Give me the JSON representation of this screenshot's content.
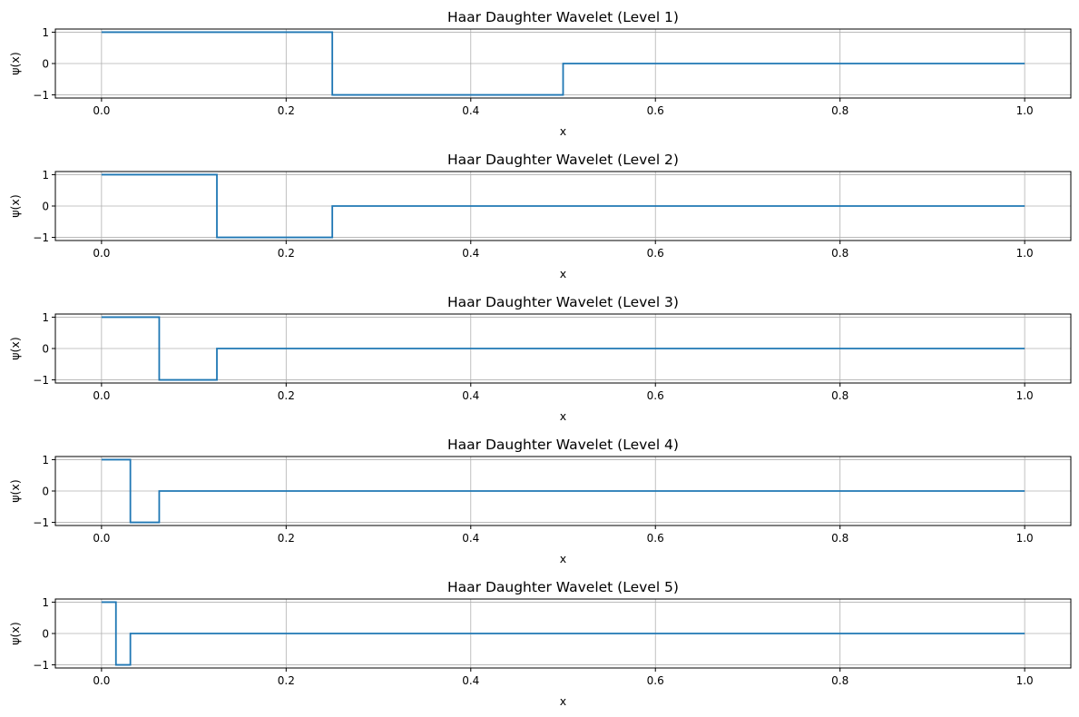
{
  "chart_data": [
    {
      "type": "line",
      "title": "Haar Daughter Wavelet (Level 1)",
      "xlabel": "x",
      "ylabel": "ψ(x)",
      "xlim": [
        -0.05,
        1.05
      ],
      "ylim": [
        -1.1,
        1.1
      ],
      "xticks": [
        0.0,
        0.2,
        0.4,
        0.6,
        0.8,
        1.0
      ],
      "xtick_labels": [
        "0.0",
        "0.2",
        "0.4",
        "0.6",
        "0.8",
        "1.0"
      ],
      "yticks": [
        1,
        0,
        -1
      ],
      "ytick_labels": [
        "1",
        "0",
        "−1"
      ],
      "grid": true,
      "color": "#1f77b4",
      "series": [
        {
          "x": [
            0.0,
            0.25,
            0.25,
            0.5,
            0.5,
            1.0
          ],
          "y": [
            1,
            1,
            -1,
            -1,
            0,
            0
          ]
        }
      ]
    },
    {
      "type": "line",
      "title": "Haar Daughter Wavelet (Level 2)",
      "xlabel": "x",
      "ylabel": "ψ(x)",
      "xlim": [
        -0.05,
        1.05
      ],
      "ylim": [
        -1.1,
        1.1
      ],
      "xticks": [
        0.0,
        0.2,
        0.4,
        0.6,
        0.8,
        1.0
      ],
      "xtick_labels": [
        "0.0",
        "0.2",
        "0.4",
        "0.6",
        "0.8",
        "1.0"
      ],
      "yticks": [
        1,
        0,
        -1
      ],
      "ytick_labels": [
        "1",
        "0",
        "−1"
      ],
      "grid": true,
      "color": "#1f77b4",
      "series": [
        {
          "x": [
            0.0,
            0.125,
            0.125,
            0.25,
            0.25,
            1.0
          ],
          "y": [
            1,
            1,
            -1,
            -1,
            0,
            0
          ]
        }
      ]
    },
    {
      "type": "line",
      "title": "Haar Daughter Wavelet (Level 3)",
      "xlabel": "x",
      "ylabel": "ψ(x)",
      "xlim": [
        -0.05,
        1.05
      ],
      "ylim": [
        -1.1,
        1.1
      ],
      "xticks": [
        0.0,
        0.2,
        0.4,
        0.6,
        0.8,
        1.0
      ],
      "xtick_labels": [
        "0.0",
        "0.2",
        "0.4",
        "0.6",
        "0.8",
        "1.0"
      ],
      "yticks": [
        1,
        0,
        -1
      ],
      "ytick_labels": [
        "1",
        "0",
        "−1"
      ],
      "grid": true,
      "color": "#1f77b4",
      "series": [
        {
          "x": [
            0.0,
            0.0625,
            0.0625,
            0.125,
            0.125,
            1.0
          ],
          "y": [
            1,
            1,
            -1,
            -1,
            0,
            0
          ]
        }
      ]
    },
    {
      "type": "line",
      "title": "Haar Daughter Wavelet (Level 4)",
      "xlabel": "x",
      "ylabel": "ψ(x)",
      "xlim": [
        -0.05,
        1.05
      ],
      "ylim": [
        -1.1,
        1.1
      ],
      "xticks": [
        0.0,
        0.2,
        0.4,
        0.6,
        0.8,
        1.0
      ],
      "xtick_labels": [
        "0.0",
        "0.2",
        "0.4",
        "0.6",
        "0.8",
        "1.0"
      ],
      "yticks": [
        1,
        0,
        -1
      ],
      "ytick_labels": [
        "1",
        "0",
        "−1"
      ],
      "grid": true,
      "color": "#1f77b4",
      "series": [
        {
          "x": [
            0.0,
            0.03125,
            0.03125,
            0.0625,
            0.0625,
            1.0
          ],
          "y": [
            1,
            1,
            -1,
            -1,
            0,
            0
          ]
        }
      ]
    },
    {
      "type": "line",
      "title": "Haar Daughter Wavelet (Level 5)",
      "xlabel": "x",
      "ylabel": "ψ(x)",
      "xlim": [
        -0.05,
        1.05
      ],
      "ylim": [
        -1.1,
        1.1
      ],
      "xticks": [
        0.0,
        0.2,
        0.4,
        0.6,
        0.8,
        1.0
      ],
      "xtick_labels": [
        "0.0",
        "0.2",
        "0.4",
        "0.6",
        "0.8",
        "1.0"
      ],
      "yticks": [
        1,
        0,
        -1
      ],
      "ytick_labels": [
        "1",
        "0",
        "−1"
      ],
      "grid": true,
      "color": "#1f77b4",
      "series": [
        {
          "x": [
            0.0,
            0.015625,
            0.015625,
            0.03125,
            0.03125,
            1.0
          ],
          "y": [
            1,
            1,
            -1,
            -1,
            0,
            0
          ]
        }
      ]
    }
  ]
}
